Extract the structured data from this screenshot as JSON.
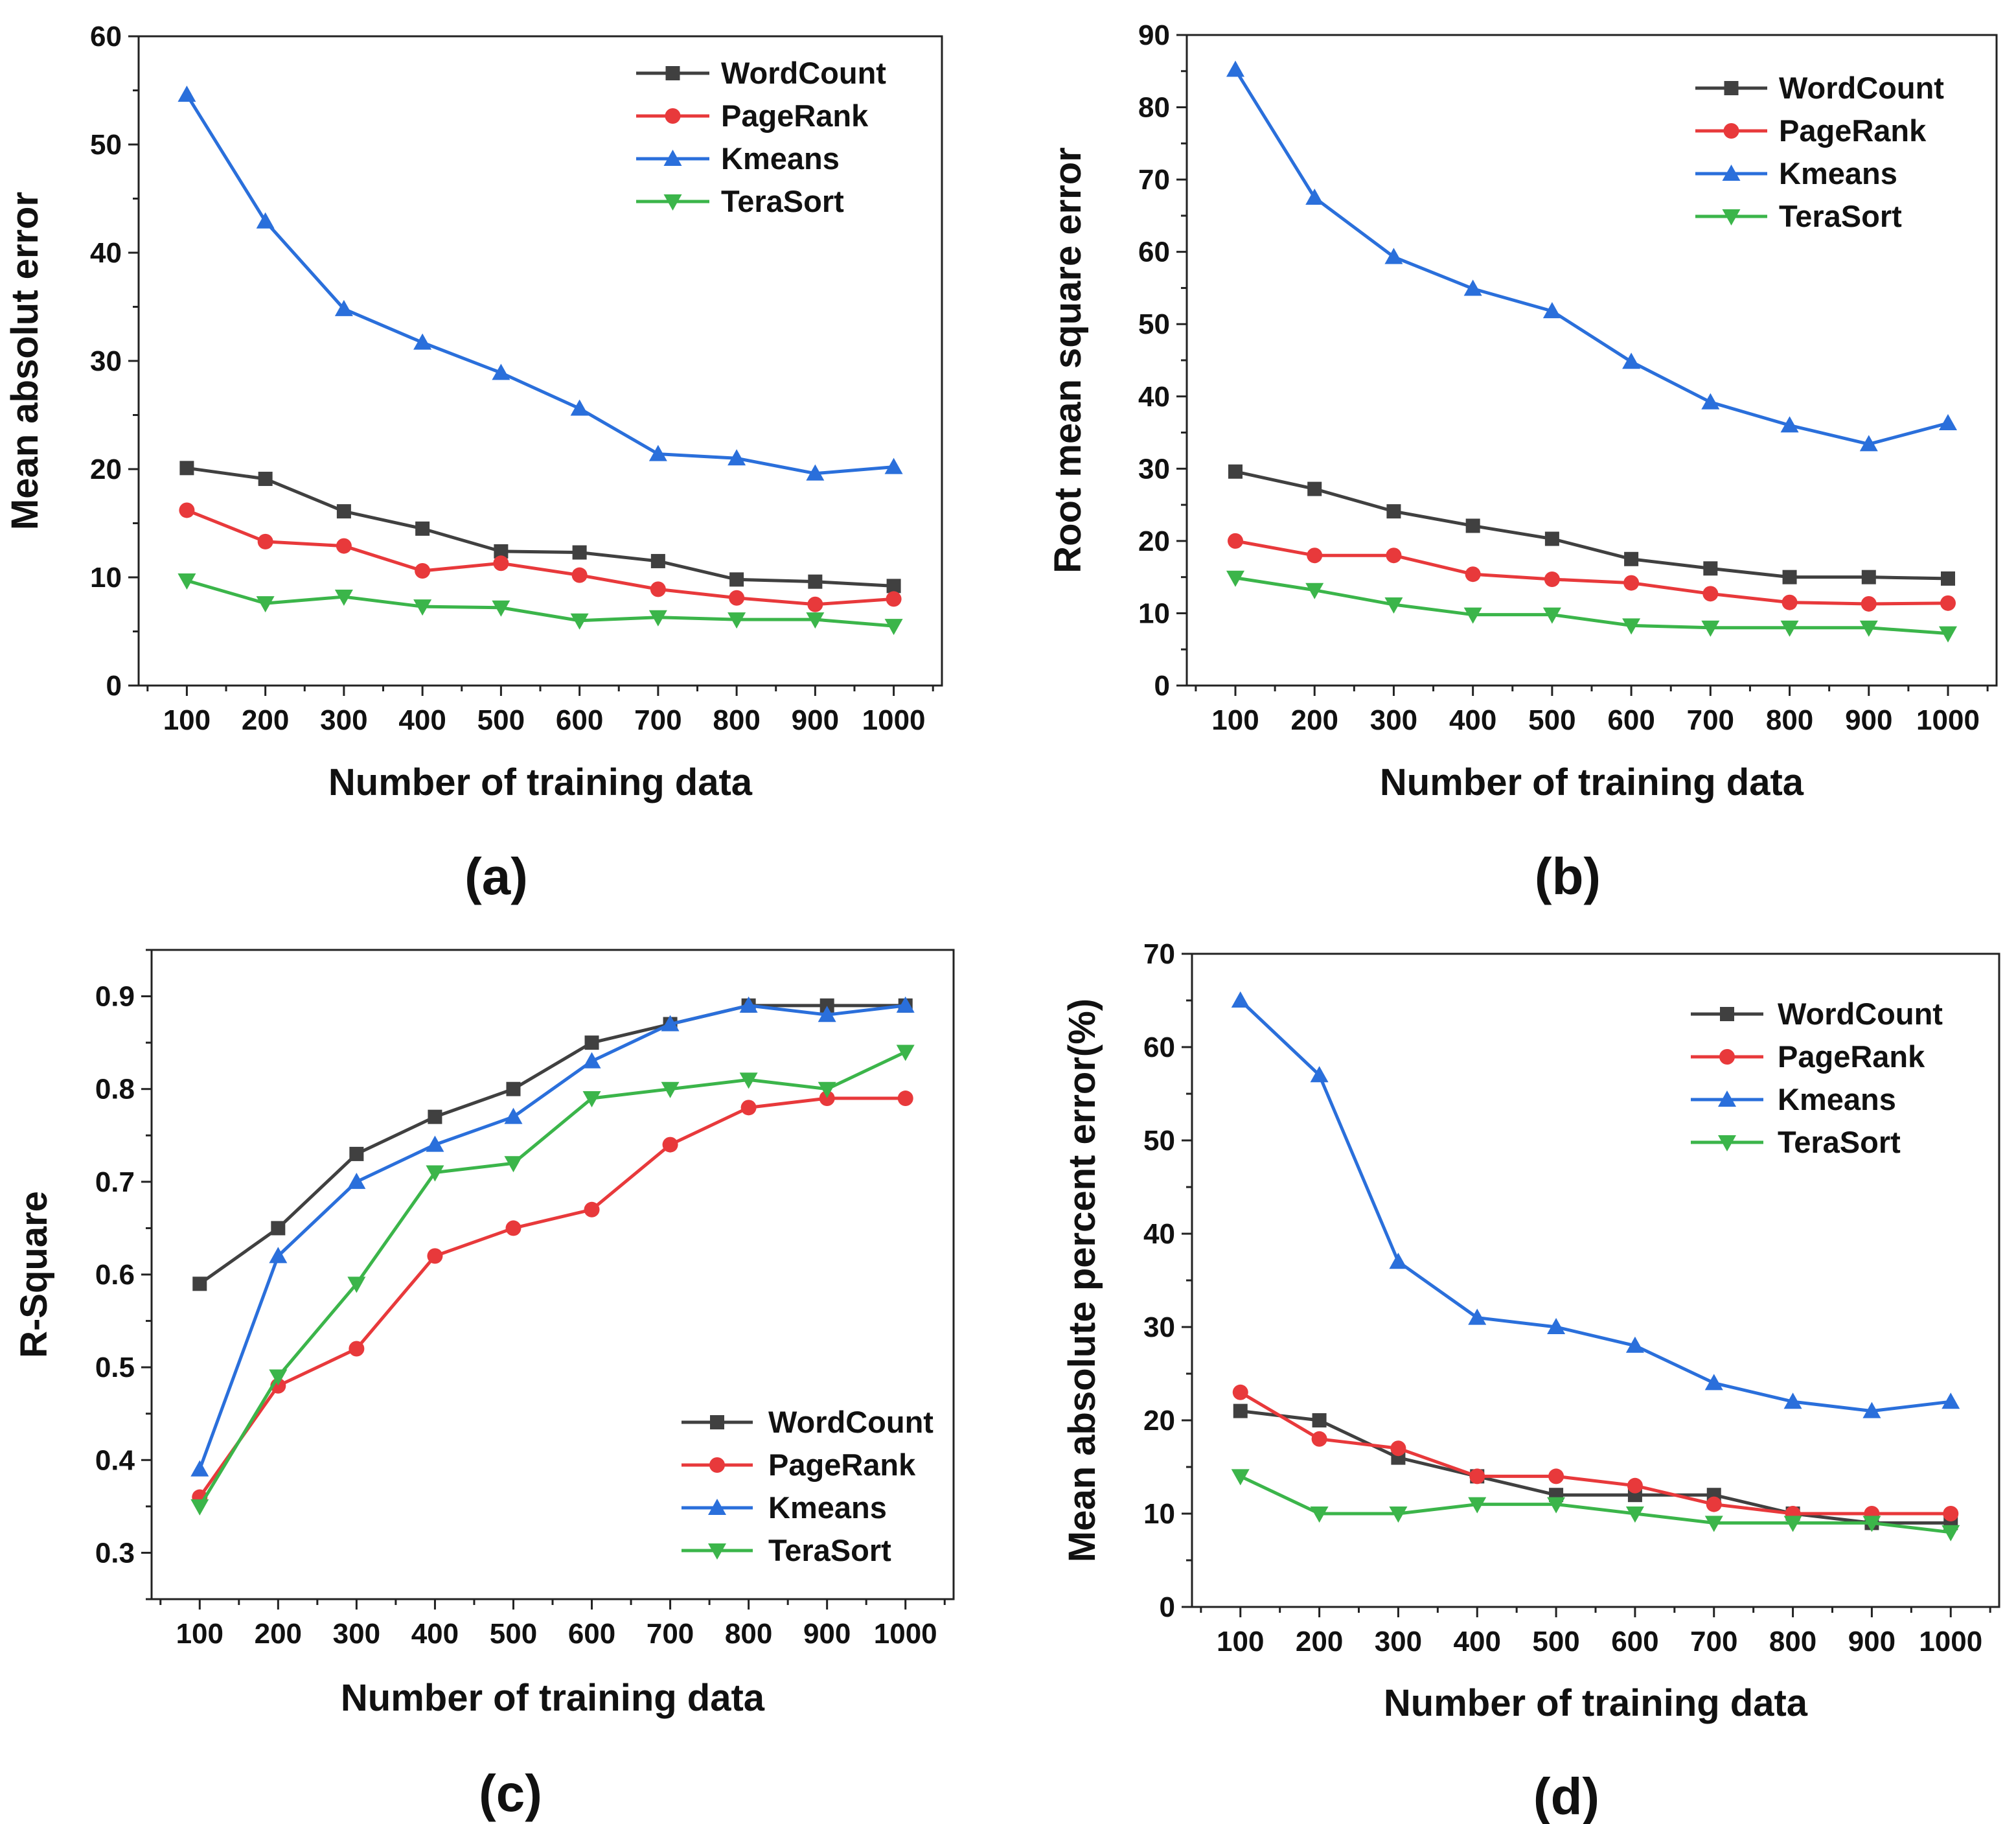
{
  "series_styles": [
    {
      "name": "WordCount",
      "color": "#404040",
      "marker": "square"
    },
    {
      "name": "PageRank",
      "color": "#e8393b",
      "marker": "circle"
    },
    {
      "name": "Kmeans",
      "color": "#2a6fdb",
      "marker": "triangle-up"
    },
    {
      "name": "TeraSort",
      "color": "#3bb54a",
      "marker": "triangle-down"
    }
  ],
  "chart_data": [
    {
      "type": "line",
      "panel": "(a)",
      "xlabel": "Number of training data",
      "ylabel": "Mean absolut error",
      "categories": [
        100,
        200,
        300,
        400,
        500,
        600,
        700,
        800,
        900,
        1000
      ],
      "ylim": [
        0,
        60
      ],
      "yticks": [
        0,
        10,
        20,
        30,
        40,
        50,
        60
      ],
      "legend_position": "top-right",
      "series": [
        {
          "name": "WordCount",
          "values": [
            20.1,
            19.1,
            16.1,
            14.5,
            12.4,
            12.3,
            11.5,
            9.8,
            9.6,
            9.2
          ]
        },
        {
          "name": "PageRank",
          "values": [
            16.2,
            13.3,
            12.9,
            10.6,
            11.3,
            10.2,
            8.9,
            8.1,
            7.5,
            8.0
          ]
        },
        {
          "name": "Kmeans",
          "values": [
            54.6,
            42.9,
            34.8,
            31.7,
            28.9,
            25.6,
            21.4,
            21.0,
            19.6,
            20.2
          ]
        },
        {
          "name": "TeraSort",
          "values": [
            9.7,
            7.6,
            8.2,
            7.3,
            7.2,
            6.0,
            6.3,
            6.1,
            6.1,
            5.5
          ]
        }
      ]
    },
    {
      "type": "line",
      "panel": "(b)",
      "xlabel": "Number of training data",
      "ylabel": "Root mean square error",
      "categories": [
        100,
        200,
        300,
        400,
        500,
        600,
        700,
        800,
        900,
        1000
      ],
      "ylim": [
        0,
        90
      ],
      "yticks": [
        0,
        10,
        20,
        30,
        40,
        50,
        60,
        70,
        80,
        90
      ],
      "legend_position": "top-right",
      "series": [
        {
          "name": "WordCount",
          "values": [
            29.6,
            27.2,
            24.1,
            22.1,
            20.3,
            17.5,
            16.2,
            15.0,
            15.0,
            14.8
          ]
        },
        {
          "name": "PageRank",
          "values": [
            20.0,
            18.0,
            18.0,
            15.4,
            14.7,
            14.2,
            12.7,
            11.5,
            11.3,
            11.4
          ]
        },
        {
          "name": "Kmeans",
          "values": [
            85.2,
            67.5,
            59.3,
            54.9,
            51.8,
            44.8,
            39.2,
            36.0,
            33.4,
            36.3
          ]
        },
        {
          "name": "TeraSort",
          "values": [
            14.9,
            13.2,
            11.2,
            9.8,
            9.8,
            8.3,
            8.0,
            8.0,
            8.0,
            7.2
          ]
        }
      ]
    },
    {
      "type": "line",
      "panel": "(c)",
      "xlabel": "Number of training data",
      "ylabel": "R-Square",
      "categories": [
        100,
        200,
        300,
        400,
        500,
        600,
        700,
        800,
        900,
        1000
      ],
      "ylim": [
        0.25,
        0.95
      ],
      "yticks": [
        0.3,
        0.4,
        0.5,
        0.6,
        0.7,
        0.8,
        0.9
      ],
      "legend_position": "bottom-right",
      "series": [
        {
          "name": "WordCount",
          "values": [
            0.59,
            0.65,
            0.73,
            0.77,
            0.8,
            0.85,
            0.87,
            0.89,
            0.89,
            0.89
          ]
        },
        {
          "name": "PageRank",
          "values": [
            0.36,
            0.48,
            0.52,
            0.62,
            0.65,
            0.67,
            0.74,
            0.78,
            0.79,
            0.79
          ]
        },
        {
          "name": "Kmeans",
          "values": [
            0.39,
            0.62,
            0.7,
            0.74,
            0.77,
            0.83,
            0.87,
            0.89,
            0.88,
            0.89
          ]
        },
        {
          "name": "TeraSort",
          "values": [
            0.35,
            0.49,
            0.59,
            0.71,
            0.72,
            0.79,
            0.8,
            0.81,
            0.8,
            0.84
          ]
        }
      ]
    },
    {
      "type": "line",
      "panel": "(d)",
      "xlabel": "Number of training data",
      "ylabel": "Mean absolute percent error(%)",
      "categories": [
        100,
        200,
        300,
        400,
        500,
        600,
        700,
        800,
        900,
        1000
      ],
      "ylim": [
        0,
        70
      ],
      "yticks": [
        0,
        10,
        20,
        30,
        40,
        50,
        60,
        70
      ],
      "legend_position": "top-right",
      "series": [
        {
          "name": "WordCount",
          "values": [
            21,
            20,
            16,
            14,
            12,
            12,
            12,
            10,
            9,
            9
          ]
        },
        {
          "name": "PageRank",
          "values": [
            23,
            18,
            17,
            14,
            14,
            13,
            11,
            10,
            10,
            10
          ]
        },
        {
          "name": "Kmeans",
          "values": [
            65,
            57,
            37,
            31,
            30,
            28,
            24,
            22,
            21,
            22
          ]
        },
        {
          "name": "TeraSort",
          "values": [
            14,
            10,
            10,
            11,
            11,
            10,
            9,
            9,
            9,
            8
          ]
        }
      ]
    }
  ]
}
